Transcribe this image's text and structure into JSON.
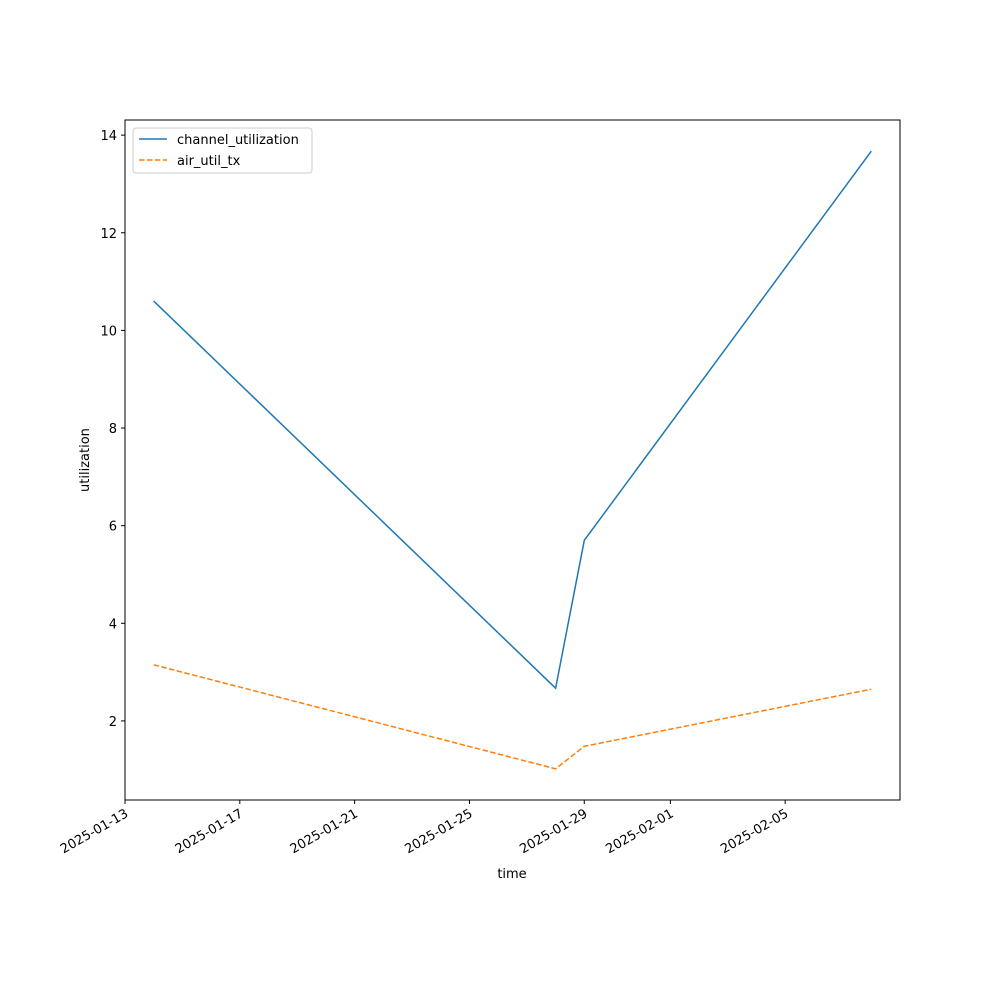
{
  "chart_data": {
    "type": "line",
    "x_label": "time",
    "y_label": "utilization",
    "x": [
      "2025-01-14",
      "2025-01-28",
      "2025-01-29",
      "2025-02-08"
    ],
    "series": [
      {
        "name": "channel_utilization",
        "color": "#1f77b4",
        "dash": "solid",
        "values": [
          10.6,
          2.67,
          5.7,
          13.67
        ]
      },
      {
        "name": "air_util_tx",
        "color": "#ff7f0e",
        "dash": "dashed",
        "values": [
          3.15,
          1.02,
          1.48,
          2.65
        ]
      }
    ],
    "xlim": [
      "2025-01-13",
      "2025-02-09"
    ],
    "xticks": [
      "2025-01-13",
      "2025-01-17",
      "2025-01-21",
      "2025-01-25",
      "2025-01-29",
      "2025-02-01",
      "2025-02-05"
    ],
    "ylim": [
      0.38,
      14.31
    ],
    "yticks": [
      2,
      4,
      6,
      8,
      10,
      12,
      14
    ],
    "grid": false,
    "legend": "upper-left"
  }
}
